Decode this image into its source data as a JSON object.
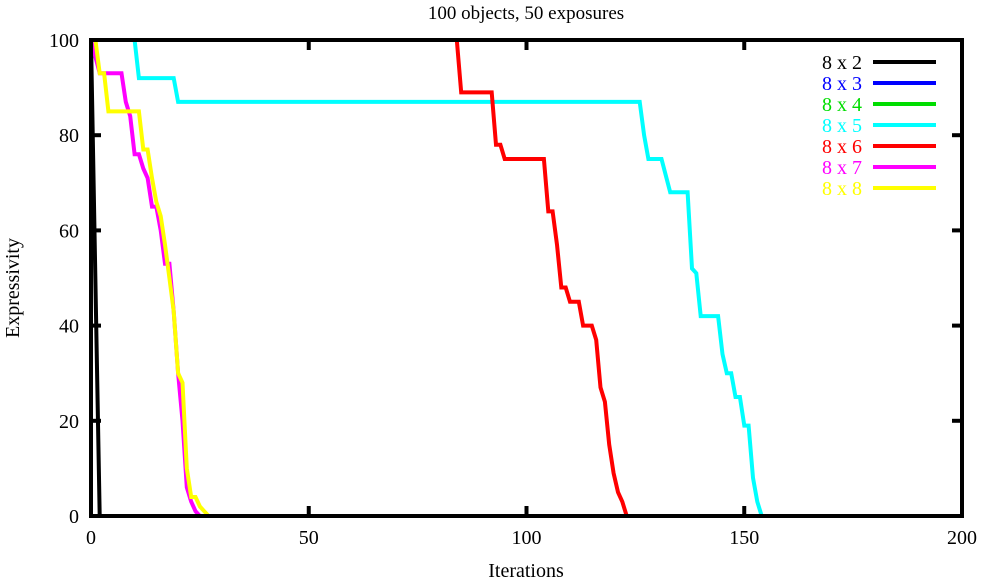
{
  "chart_data": {
    "type": "line",
    "title": "100 objects, 50 exposures",
    "xlabel": "Iterations",
    "ylabel": "Expressivity",
    "xlim": [
      0,
      200
    ],
    "ylim": [
      0,
      100
    ],
    "xticks": [
      "0",
      "50",
      "100",
      "150",
      "200"
    ],
    "yticks": [
      "0",
      "20",
      "40",
      "60",
      "80",
      "100"
    ],
    "grid": false,
    "legend_position": "top-right",
    "series": [
      {
        "name": "8 x 2",
        "color": "#000000",
        "x": [
          0,
          2,
          200
        ],
        "y": [
          100,
          0,
          0
        ]
      },
      {
        "name": "8 x 3",
        "color": "#0000ff",
        "x": [
          0,
          200
        ],
        "y": [
          100,
          100
        ]
      },
      {
        "name": "8 x 4",
        "color": "#00dd00",
        "x": [
          0,
          200
        ],
        "y": [
          100,
          100
        ]
      },
      {
        "name": "8 x 5",
        "color": "#00ffff",
        "x": [
          0,
          10,
          11,
          13,
          19,
          20,
          22,
          126,
          127,
          128,
          130,
          131,
          133,
          137,
          138,
          139,
          140,
          141,
          144,
          145,
          146,
          147,
          148,
          149,
          150,
          151,
          152,
          153,
          154,
          155,
          200
        ],
        "y": [
          100,
          100,
          92,
          92,
          92,
          87,
          87,
          87,
          80,
          75,
          75,
          75,
          68,
          68,
          52,
          51,
          42,
          42,
          42,
          34,
          30,
          30,
          25,
          25,
          19,
          19,
          8,
          3,
          0,
          0,
          0
        ]
      },
      {
        "name": "8 x 6",
        "color": "#ff0000",
        "x": [
          0,
          84,
          85,
          86,
          92,
          93,
          94,
          95,
          104,
          105,
          106,
          107,
          108,
          109,
          110,
          111,
          112,
          113,
          114,
          115,
          116,
          117,
          118,
          119,
          120,
          121,
          122,
          123,
          124,
          200
        ],
        "y": [
          100,
          100,
          89,
          89,
          89,
          78,
          78,
          75,
          75,
          64,
          64,
          57,
          48,
          48,
          45,
          45,
          45,
          40,
          40,
          40,
          37,
          27,
          24,
          15,
          9,
          5,
          3,
          0,
          0,
          0
        ]
      },
      {
        "name": "8 x 7",
        "color": "#ff00ff",
        "x": [
          0,
          2,
          3,
          7,
          8,
          9,
          10,
          11,
          12,
          13,
          14,
          15,
          16,
          17,
          18,
          19,
          20,
          21,
          22,
          23,
          24,
          25,
          26,
          27,
          200
        ],
        "y": [
          100,
          93,
          93,
          93,
          87,
          84,
          76,
          76,
          73,
          71,
          65,
          65,
          60,
          53,
          53,
          43,
          30,
          20,
          6,
          3,
          1,
          0,
          0,
          0,
          0
        ]
      },
      {
        "name": "8 x 8",
        "color": "#ffff00",
        "x": [
          0,
          1,
          2,
          3,
          4,
          11,
          12,
          13,
          14,
          15,
          16,
          17,
          18,
          19,
          20,
          21,
          22,
          23,
          24,
          25,
          26,
          27,
          28,
          200
        ],
        "y": [
          100,
          100,
          93,
          93,
          85,
          85,
          77,
          77,
          71,
          66,
          63,
          57,
          50,
          43,
          30,
          28,
          10,
          4,
          4,
          2,
          1,
          0,
          0,
          0
        ]
      }
    ]
  }
}
